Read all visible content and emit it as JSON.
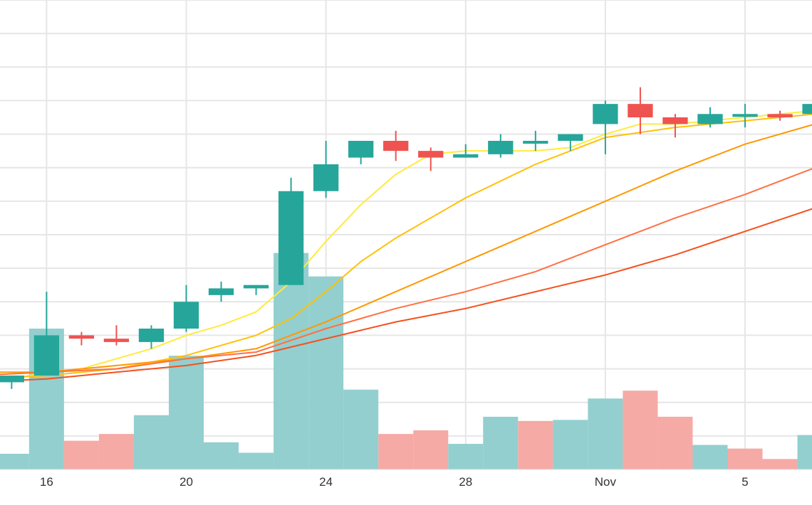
{
  "chart_data": {
    "type": "candlestick",
    "x_ticks": [
      {
        "date": "2021-10-16",
        "label": "16"
      },
      {
        "date": "2021-10-20",
        "label": "20"
      },
      {
        "date": "2021-10-24",
        "label": "24"
      },
      {
        "date": "2021-10-28",
        "label": "28"
      },
      {
        "date": "2021-11-01",
        "label": "Nov"
      },
      {
        "date": "2021-11-05",
        "label": "5"
      }
    ],
    "x_range": [
      "2021-10-14 16:00",
      "2021-11-06 22:00"
    ],
    "y_range": [
      -1.0,
      13.0
    ],
    "volume_range": [
      0,
      9
    ],
    "grid": true,
    "legend": "none",
    "up_color": "#26a69a",
    "down_color": "#ef5350",
    "up_volume_color": "#93cfcf",
    "down_volume_color": "#f5aaa6",
    "candles": [
      {
        "date": "2021-10-15",
        "open": 1.6,
        "high": 1.8,
        "low": 1.4,
        "close": 1.8
      },
      {
        "date": "2021-10-16",
        "open": 1.8,
        "high": 4.3,
        "low": 1.8,
        "close": 3.0
      },
      {
        "date": "2021-10-17",
        "open": 3.0,
        "high": 3.1,
        "low": 2.7,
        "close": 2.9
      },
      {
        "date": "2021-10-18",
        "open": 2.9,
        "high": 3.3,
        "low": 2.7,
        "close": 2.8
      },
      {
        "date": "2021-10-19",
        "open": 2.8,
        "high": 3.3,
        "low": 2.6,
        "close": 3.2
      },
      {
        "date": "2021-10-20",
        "open": 3.2,
        "high": 4.5,
        "low": 3.1,
        "close": 4.0
      },
      {
        "date": "2021-10-21",
        "open": 4.2,
        "high": 4.6,
        "low": 4.0,
        "close": 4.4
      },
      {
        "date": "2021-10-22",
        "open": 4.4,
        "high": 4.5,
        "low": 4.2,
        "close": 4.5
      },
      {
        "date": "2021-10-23",
        "open": 4.5,
        "high": 7.7,
        "low": 4.5,
        "close": 7.3
      },
      {
        "date": "2021-10-24",
        "open": 7.3,
        "high": 8.8,
        "low": 7.1,
        "close": 8.1
      },
      {
        "date": "2021-10-25",
        "open": 8.3,
        "high": 8.8,
        "low": 8.1,
        "close": 8.8
      },
      {
        "date": "2021-10-26",
        "open": 8.8,
        "high": 9.1,
        "low": 8.2,
        "close": 8.5
      },
      {
        "date": "2021-10-27",
        "open": 8.5,
        "high": 8.6,
        "low": 7.9,
        "close": 8.3
      },
      {
        "date": "2021-10-28",
        "open": 8.3,
        "high": 8.7,
        "low": 8.3,
        "close": 8.4
      },
      {
        "date": "2021-10-29",
        "open": 8.4,
        "high": 9.0,
        "low": 8.3,
        "close": 8.8
      },
      {
        "date": "2021-10-30",
        "open": 8.8,
        "high": 9.1,
        "low": 8.5,
        "close": 8.8
      },
      {
        "date": "2021-10-31",
        "open": 8.8,
        "high": 9.0,
        "low": 8.5,
        "close": 9.0
      },
      {
        "date": "2021-11-01",
        "open": 9.3,
        "high": 10.0,
        "low": 8.4,
        "close": 9.9
      },
      {
        "date": "2021-11-02",
        "open": 9.9,
        "high": 10.4,
        "low": 9.0,
        "close": 9.5
      },
      {
        "date": "2021-11-03",
        "open": 9.5,
        "high": 9.6,
        "low": 8.9,
        "close": 9.3
      },
      {
        "date": "2021-11-04",
        "open": 9.3,
        "high": 9.8,
        "low": 9.2,
        "close": 9.6
      },
      {
        "date": "2021-11-05",
        "open": 9.6,
        "high": 9.9,
        "low": 9.2,
        "close": 9.6
      },
      {
        "date": "2021-11-06",
        "open": 9.6,
        "high": 9.7,
        "low": 9.4,
        "close": 9.5
      },
      {
        "date": "2021-11-07",
        "open": 9.6,
        "high": 10.4,
        "low": 9.3,
        "close": 9.9
      }
    ],
    "volume": [
      {
        "date": "2021-10-15",
        "value": 0.3,
        "direction": "up"
      },
      {
        "date": "2021-10-16",
        "value": 2.7,
        "direction": "up"
      },
      {
        "date": "2021-10-17",
        "value": 0.55,
        "direction": "down"
      },
      {
        "date": "2021-10-18",
        "value": 0.68,
        "direction": "down"
      },
      {
        "date": "2021-10-19",
        "value": 1.04,
        "direction": "up"
      },
      {
        "date": "2021-10-20",
        "value": 2.18,
        "direction": "up"
      },
      {
        "date": "2021-10-21",
        "value": 0.52,
        "direction": "up"
      },
      {
        "date": "2021-10-22",
        "value": 0.32,
        "direction": "up"
      },
      {
        "date": "2021-10-23",
        "value": 4.15,
        "direction": "up"
      },
      {
        "date": "2021-10-24",
        "value": 3.7,
        "direction": "up"
      },
      {
        "date": "2021-10-25",
        "value": 1.53,
        "direction": "up"
      },
      {
        "date": "2021-10-26",
        "value": 0.68,
        "direction": "down"
      },
      {
        "date": "2021-10-27",
        "value": 0.75,
        "direction": "down"
      },
      {
        "date": "2021-10-28",
        "value": 0.49,
        "direction": "up"
      },
      {
        "date": "2021-10-29",
        "value": 1.01,
        "direction": "up"
      },
      {
        "date": "2021-10-30",
        "value": 0.93,
        "direction": "down"
      },
      {
        "date": "2021-10-31",
        "value": 0.95,
        "direction": "up"
      },
      {
        "date": "2021-11-01",
        "value": 1.36,
        "direction": "up"
      },
      {
        "date": "2021-11-02",
        "value": 1.51,
        "direction": "down"
      },
      {
        "date": "2021-11-03",
        "value": 1.01,
        "direction": "down"
      },
      {
        "date": "2021-11-04",
        "value": 0.47,
        "direction": "up"
      },
      {
        "date": "2021-11-05",
        "value": 0.4,
        "direction": "down"
      },
      {
        "date": "2021-11-06",
        "value": 0.2,
        "direction": "down"
      },
      {
        "date": "2021-11-07",
        "value": 0.66,
        "direction": "up"
      }
    ],
    "moving_averages": [
      {
        "color": "#ffeb3b",
        "values": [
          {
            "date": "2021-10-14",
            "value": 1.5
          },
          {
            "date": "2021-10-16",
            "value": 1.9
          },
          {
            "date": "2021-10-17",
            "value": 2.0
          },
          {
            "date": "2021-10-18",
            "value": 2.3
          },
          {
            "date": "2021-10-19",
            "value": 2.6
          },
          {
            "date": "2021-10-20",
            "value": 3.0
          },
          {
            "date": "2021-10-21",
            "value": 3.3
          },
          {
            "date": "2021-10-22",
            "value": 3.7
          },
          {
            "date": "2021-10-23",
            "value": 4.6
          },
          {
            "date": "2021-10-24",
            "value": 5.8
          },
          {
            "date": "2021-10-25",
            "value": 6.9
          },
          {
            "date": "2021-10-26",
            "value": 7.8
          },
          {
            "date": "2021-10-27",
            "value": 8.4
          },
          {
            "date": "2021-10-28",
            "value": 8.5
          },
          {
            "date": "2021-10-29",
            "value": 8.5
          },
          {
            "date": "2021-10-30",
            "value": 8.5
          },
          {
            "date": "2021-10-31",
            "value": 8.6
          },
          {
            "date": "2021-11-01",
            "value": 9.0
          },
          {
            "date": "2021-11-02",
            "value": 9.3
          },
          {
            "date": "2021-11-03",
            "value": 9.3
          },
          {
            "date": "2021-11-04",
            "value": 9.4
          },
          {
            "date": "2021-11-05",
            "value": 9.5
          },
          {
            "date": "2021-11-06",
            "value": 9.6
          },
          {
            "date": "2021-11-07",
            "value": 9.7
          }
        ]
      },
      {
        "color": "#ffc107",
        "values": [
          {
            "date": "2021-10-14",
            "value": 1.7
          },
          {
            "date": "2021-10-16",
            "value": 1.8
          },
          {
            "date": "2021-10-18",
            "value": 2.0
          },
          {
            "date": "2021-10-20",
            "value": 2.4
          },
          {
            "date": "2021-10-22",
            "value": 3.0
          },
          {
            "date": "2021-10-23",
            "value": 3.5
          },
          {
            "date": "2021-10-24",
            "value": 4.3
          },
          {
            "date": "2021-10-25",
            "value": 5.2
          },
          {
            "date": "2021-10-26",
            "value": 5.9
          },
          {
            "date": "2021-10-28",
            "value": 7.1
          },
          {
            "date": "2021-10-30",
            "value": 8.1
          },
          {
            "date": "2021-11-01",
            "value": 8.9
          },
          {
            "date": "2021-11-03",
            "value": 9.2
          },
          {
            "date": "2021-11-05",
            "value": 9.4
          },
          {
            "date": "2021-11-07",
            "value": 9.6
          }
        ]
      },
      {
        "color": "#ff9800",
        "values": [
          {
            "date": "2021-10-14",
            "value": 1.9
          },
          {
            "date": "2021-10-16",
            "value": 1.9
          },
          {
            "date": "2021-10-18",
            "value": 2.1
          },
          {
            "date": "2021-10-20",
            "value": 2.3
          },
          {
            "date": "2021-10-22",
            "value": 2.6
          },
          {
            "date": "2021-10-24",
            "value": 3.4
          },
          {
            "date": "2021-10-26",
            "value": 4.3
          },
          {
            "date": "2021-10-28",
            "value": 5.2
          },
          {
            "date": "2021-10-30",
            "value": 6.1
          },
          {
            "date": "2021-11-01",
            "value": 7.0
          },
          {
            "date": "2021-11-03",
            "value": 7.9
          },
          {
            "date": "2021-11-05",
            "value": 8.7
          },
          {
            "date": "2021-11-07",
            "value": 9.3
          }
        ]
      },
      {
        "color": "#ff7043",
        "values": [
          {
            "date": "2021-10-14",
            "value": 1.8
          },
          {
            "date": "2021-10-16",
            "value": 1.9
          },
          {
            "date": "2021-10-18",
            "value": 2.0
          },
          {
            "date": "2021-10-20",
            "value": 2.3
          },
          {
            "date": "2021-10-22",
            "value": 2.5
          },
          {
            "date": "2021-10-24",
            "value": 3.2
          },
          {
            "date": "2021-10-26",
            "value": 3.8
          },
          {
            "date": "2021-10-28",
            "value": 4.3
          },
          {
            "date": "2021-10-30",
            "value": 4.9
          },
          {
            "date": "2021-11-01",
            "value": 5.7
          },
          {
            "date": "2021-11-03",
            "value": 6.5
          },
          {
            "date": "2021-11-05",
            "value": 7.2
          },
          {
            "date": "2021-11-07",
            "value": 8.0
          }
        ]
      },
      {
        "color": "#f4511e",
        "values": [
          {
            "date": "2021-10-14",
            "value": 1.6
          },
          {
            "date": "2021-10-16",
            "value": 1.7
          },
          {
            "date": "2021-10-18",
            "value": 1.9
          },
          {
            "date": "2021-10-20",
            "value": 2.1
          },
          {
            "date": "2021-10-22",
            "value": 2.4
          },
          {
            "date": "2021-10-24",
            "value": 2.9
          },
          {
            "date": "2021-10-26",
            "value": 3.4
          },
          {
            "date": "2021-10-28",
            "value": 3.8
          },
          {
            "date": "2021-10-30",
            "value": 4.3
          },
          {
            "date": "2021-11-01",
            "value": 4.8
          },
          {
            "date": "2021-11-03",
            "value": 5.4
          },
          {
            "date": "2021-11-05",
            "value": 6.1
          },
          {
            "date": "2021-11-07",
            "value": 6.8
          }
        ]
      }
    ]
  }
}
